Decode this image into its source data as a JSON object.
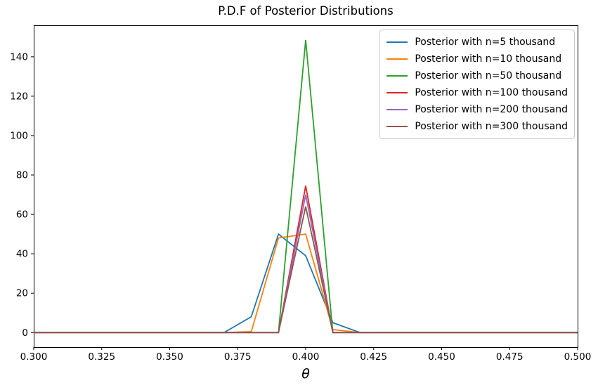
{
  "figure": {
    "background": "#ffffff",
    "axis_color": "#000000"
  },
  "chart_data": {
    "type": "line",
    "title": "P.D.F of Posterior Distributions",
    "xlabel": "θ",
    "ylabel": "",
    "grid": false,
    "legend_position": "upper right",
    "xlim": [
      0.3,
      0.5
    ],
    "ylim": [
      -7.4,
      156.0
    ],
    "xticks": [
      "0.300",
      "0.325",
      "0.350",
      "0.375",
      "0.400",
      "0.425",
      "0.450",
      "0.475",
      "0.500"
    ],
    "yticks": [
      "0",
      "20",
      "40",
      "60",
      "80",
      "100",
      "120",
      "140"
    ],
    "x": [
      0.3,
      0.31,
      0.32,
      0.33,
      0.34,
      0.35,
      0.36,
      0.37,
      0.38,
      0.39,
      0.4,
      0.41,
      0.42,
      0.43,
      0.44,
      0.45,
      0.46,
      0.47,
      0.48,
      0.49,
      0.5
    ],
    "series": [
      {
        "name": "Posterior with n=5 thousand",
        "color": "#1f77b4",
        "values": [
          0,
          0,
          0,
          0,
          0,
          0,
          0,
          0,
          8,
          50,
          39,
          5,
          0,
          0,
          0,
          0,
          0,
          0,
          0,
          0,
          0
        ]
      },
      {
        "name": "Posterior with n=10 thousand",
        "color": "#ff7f0e",
        "values": [
          0,
          0,
          0,
          0,
          0,
          0,
          0,
          0,
          0.5,
          48,
          50,
          1.5,
          0,
          0,
          0,
          0,
          0,
          0,
          0,
          0,
          0
        ]
      },
      {
        "name": "Posterior with n=50 thousand",
        "color": "#2ca02c",
        "values": [
          0,
          0,
          0,
          0,
          0,
          0,
          0,
          0,
          0,
          0,
          148.5,
          0,
          0,
          0,
          0,
          0,
          0,
          0,
          0,
          0,
          0
        ]
      },
      {
        "name": "Posterior with n=100 thousand",
        "color": "#d62728",
        "values": [
          0,
          0,
          0,
          0,
          0,
          0,
          0,
          0,
          0,
          0,
          74.5,
          0,
          0,
          0,
          0,
          0,
          0,
          0,
          0,
          0,
          0
        ]
      },
      {
        "name": "Posterior with n=200 thousand",
        "color": "#9467bd",
        "values": [
          0,
          0,
          0,
          0,
          0,
          0,
          0,
          0,
          0,
          0,
          70,
          0,
          0,
          0,
          0,
          0,
          0,
          0,
          0,
          0,
          0
        ]
      },
      {
        "name": "Posterior with n=300 thousand",
        "color": "#8c564b",
        "values": [
          0,
          0,
          0,
          0,
          0,
          0,
          0,
          0,
          0,
          0,
          64,
          0,
          0,
          0,
          0,
          0,
          0,
          0,
          0,
          0,
          0
        ]
      }
    ]
  }
}
